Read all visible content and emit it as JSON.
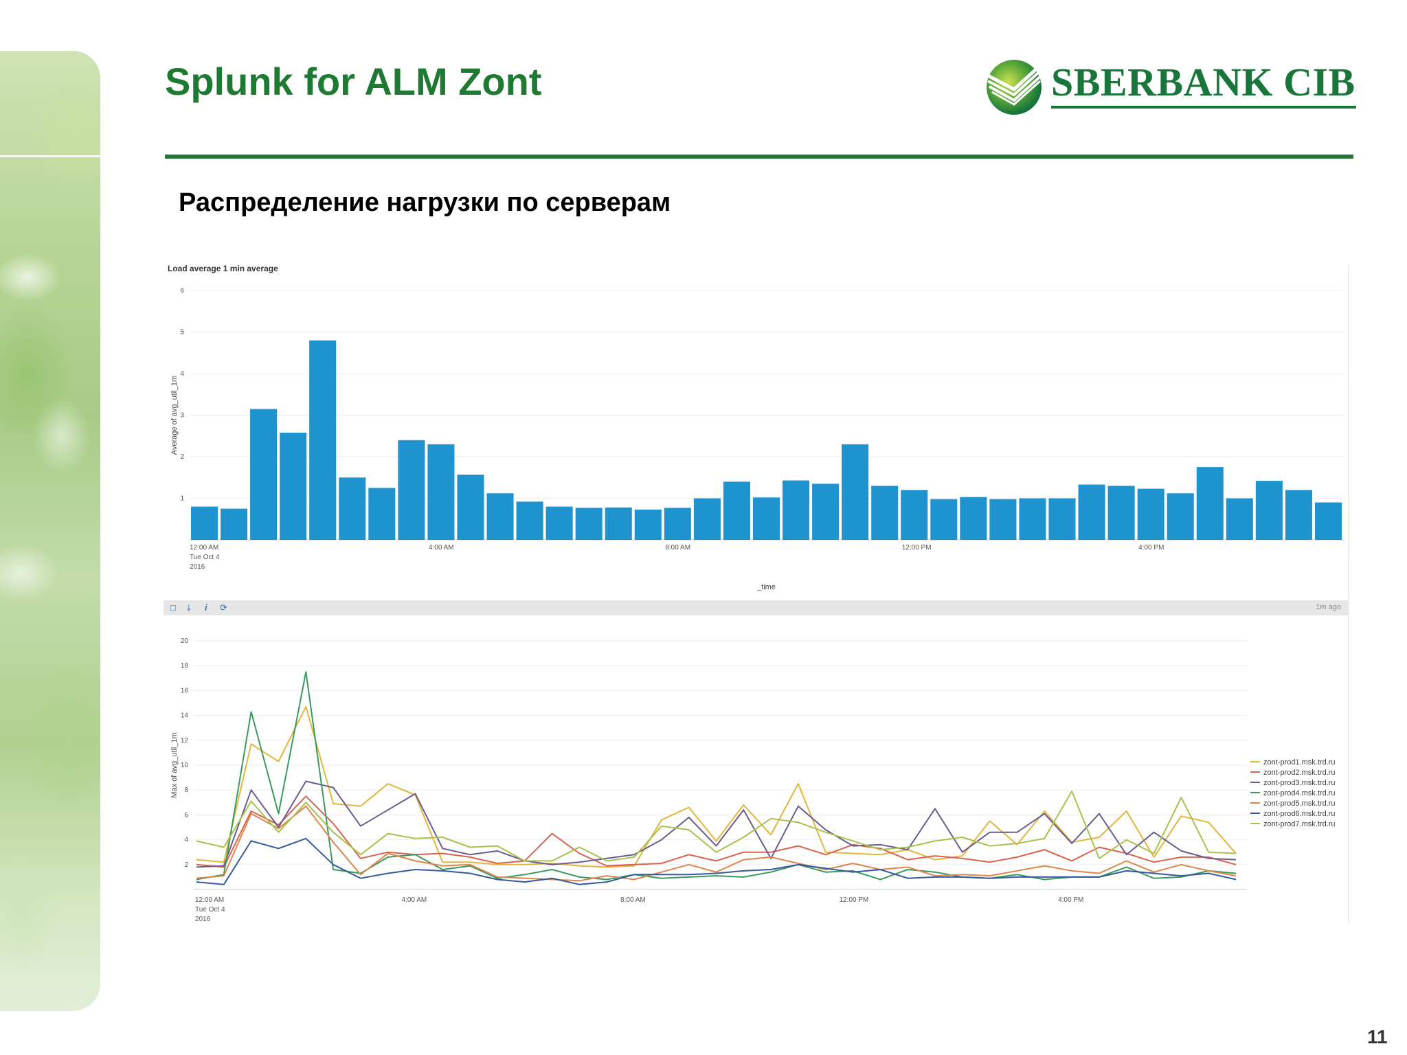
{
  "slide": {
    "title": "Splunk for ALM Zont",
    "subtitle": "Распределение нагрузки по серверам",
    "page_number": "11",
    "logo_text": "SBERBANK CIB",
    "accent_color": "#1e7a32"
  },
  "toolbar": {
    "icons": [
      "open-search-icon",
      "export-icon",
      "info-icon",
      "refresh-icon"
    ],
    "updated": "1m ago"
  },
  "chart_data": [
    {
      "type": "bar",
      "title": "Load average 1 min average",
      "ylabel": "Average of avg_util_1m",
      "xlabel": "_time",
      "ylim": [
        0,
        6
      ],
      "yticks": [
        1,
        2,
        3,
        4,
        5,
        6
      ],
      "bar_color": "#1e93ce",
      "x_tick_labels": [
        {
          "index": 0,
          "lines": [
            "12:00 AM",
            "Tue Oct 4",
            "2016"
          ]
        },
        {
          "index": 8,
          "lines": [
            "4:00 AM"
          ]
        },
        {
          "index": 16,
          "lines": [
            "8:00 AM"
          ]
        },
        {
          "index": 24,
          "lines": [
            "12:00 PM"
          ]
        },
        {
          "index": 32,
          "lines": [
            "4:00 PM"
          ]
        }
      ],
      "values": [
        0.8,
        0.75,
        3.15,
        2.58,
        4.8,
        1.5,
        1.25,
        2.4,
        2.3,
        1.57,
        1.12,
        0.92,
        0.8,
        0.77,
        0.78,
        0.73,
        0.77,
        1.0,
        1.4,
        1.02,
        1.43,
        1.35,
        2.3,
        1.3,
        1.2,
        0.98,
        1.03,
        0.98,
        1.0,
        1.0,
        1.33,
        1.3,
        1.23,
        1.12,
        1.75,
        1.0,
        1.42,
        1.2,
        0.9
      ]
    },
    {
      "type": "line",
      "ylabel": "Max of avg_util_1m",
      "ylim": [
        0,
        20
      ],
      "yticks": [
        2,
        4,
        6,
        8,
        10,
        12,
        14,
        16,
        18,
        20
      ],
      "x_tick_labels": [
        {
          "index": 0,
          "lines": [
            "12:00 AM",
            "Tue Oct 4",
            "2016"
          ]
        },
        {
          "index": 8,
          "lines": [
            "4:00 AM"
          ]
        },
        {
          "index": 16,
          "lines": [
            "8:00 AM"
          ]
        },
        {
          "index": 24,
          "lines": [
            "12:00 PM"
          ]
        },
        {
          "index": 32,
          "lines": [
            "4:00 PM"
          ]
        }
      ],
      "legend_position": "right",
      "series": [
        {
          "name": "zont-prod1.msk.trd.ru",
          "color": "#e3b53b",
          "values": [
            2.4,
            2.2,
            11.7,
            10.3,
            14.7,
            6.9,
            6.7,
            8.5,
            7.6,
            2.2,
            2.2,
            2.0,
            2.0,
            2.1,
            1.9,
            1.8,
            1.9,
            5.6,
            6.6,
            3.9,
            6.8,
            4.4,
            8.5,
            3.0,
            2.9,
            2.8,
            3.2,
            2.4,
            2.7,
            5.5,
            3.6,
            6.3,
            3.8,
            4.2,
            6.3,
            2.6,
            5.9,
            5.4,
            2.9
          ]
        },
        {
          "name": "zont-prod2.msk.trd.ru",
          "color": "#d9624a",
          "values": [
            2.0,
            1.8,
            6.3,
            5.2,
            7.5,
            5.3,
            2.5,
            3.0,
            2.8,
            2.9,
            2.6,
            2.1,
            2.3,
            4.5,
            2.9,
            1.9,
            2.0,
            2.1,
            2.8,
            2.3,
            3.0,
            3.0,
            3.5,
            2.8,
            3.6,
            3.3,
            2.4,
            2.7,
            2.5,
            2.2,
            2.6,
            3.2,
            2.3,
            3.4,
            2.9,
            2.2,
            2.6,
            2.6,
            2.0
          ]
        },
        {
          "name": "zont-prod3.msk.trd.ru",
          "color": "#6a5a8e",
          "values": [
            1.8,
            1.9,
            8.0,
            5.0,
            8.7,
            8.2,
            5.1,
            6.4,
            7.7,
            3.3,
            2.8,
            3.1,
            2.3,
            2.0,
            2.2,
            2.5,
            2.8,
            4.0,
            5.8,
            3.5,
            6.4,
            2.5,
            6.7,
            4.8,
            3.5,
            3.6,
            3.2,
            6.5,
            3.0,
            4.6,
            4.6,
            6.1,
            3.7,
            6.1,
            2.8,
            4.6,
            3.1,
            2.5,
            2.4
          ]
        },
        {
          "name": "zont-prod4.msk.trd.ru",
          "color": "#3a9a5e",
          "values": [
            0.8,
            1.2,
            14.3,
            6.1,
            17.5,
            1.6,
            1.3,
            2.6,
            2.8,
            1.6,
            1.9,
            0.9,
            1.2,
            1.6,
            1.0,
            0.8,
            1.2,
            0.9,
            1.0,
            1.1,
            1.0,
            1.4,
            2.0,
            1.4,
            1.5,
            0.8,
            1.6,
            1.4,
            1.0,
            0.9,
            1.2,
            0.8,
            1.0,
            1.0,
            1.8,
            0.9,
            1.0,
            1.5,
            1.3
          ]
        },
        {
          "name": "zont-prod5.msk.trd.ru",
          "color": "#e1844c",
          "values": [
            0.9,
            1.1,
            6.1,
            4.9,
            6.7,
            3.8,
            1.2,
            2.9,
            2.3,
            1.9,
            2.0,
            1.0,
            0.9,
            0.8,
            0.7,
            1.1,
            0.8,
            1.4,
            2.0,
            1.4,
            2.4,
            2.6,
            2.1,
            1.6,
            2.1,
            1.6,
            1.8,
            1.1,
            1.2,
            1.1,
            1.5,
            1.9,
            1.5,
            1.3,
            2.3,
            1.4,
            2.0,
            1.5,
            1.1
          ]
        },
        {
          "name": "zont-prod6.msk.trd.ru",
          "color": "#34589e",
          "values": [
            0.6,
            0.4,
            3.9,
            3.3,
            4.1,
            2.0,
            0.9,
            1.3,
            1.6,
            1.5,
            1.3,
            0.8,
            0.6,
            0.9,
            0.4,
            0.6,
            1.2,
            1.2,
            1.2,
            1.3,
            1.5,
            1.6,
            2.0,
            1.7,
            1.4,
            1.6,
            0.9,
            1.0,
            1.0,
            0.9,
            1.0,
            1.0,
            1.0,
            1.0,
            1.5,
            1.3,
            1.1,
            1.3,
            0.8
          ]
        },
        {
          "name": "zont-prod7.msk.trd.ru",
          "color": "#a7c14b",
          "values": [
            3.9,
            3.4,
            7.1,
            4.6,
            7.0,
            4.6,
            2.8,
            4.5,
            4.1,
            4.2,
            3.4,
            3.5,
            2.3,
            2.3,
            3.4,
            2.3,
            2.6,
            5.1,
            4.8,
            3.0,
            4.2,
            5.7,
            5.4,
            4.6,
            3.9,
            3.2,
            3.4,
            3.9,
            4.2,
            3.5,
            3.7,
            4.1,
            7.9,
            2.5,
            4.0,
            2.9,
            7.4,
            3.0,
            2.9
          ]
        }
      ]
    }
  ]
}
